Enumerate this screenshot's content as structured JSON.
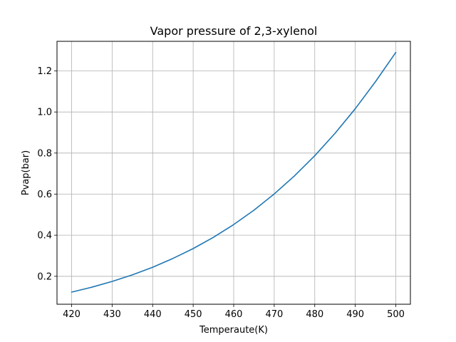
{
  "chart_data": {
    "type": "line",
    "title": "Vapor pressure of 2,3-xylenol",
    "xlabel": "Temperaute(K)",
    "ylabel": "Pvap(bar)",
    "xlim": [
      416.4,
      503.6
    ],
    "ylim": [
      0.064,
      1.344
    ],
    "xticks": [
      420,
      430,
      440,
      450,
      460,
      470,
      480,
      490,
      500
    ],
    "yticks": [
      0.2,
      0.4,
      0.6,
      0.8,
      1.0,
      1.2
    ],
    "ytick_labels": [
      "0.2",
      "0.4",
      "0.6",
      "0.8",
      "1.0",
      "1.2"
    ],
    "grid": true,
    "series": [
      {
        "color": "#1f77b4",
        "x": [
          420,
          425,
          430,
          435,
          440,
          445,
          450,
          455,
          460,
          465,
          470,
          475,
          480,
          485,
          490,
          495,
          500
        ],
        "y": [
          0.123,
          0.147,
          0.175,
          0.207,
          0.244,
          0.287,
          0.335,
          0.39,
          0.452,
          0.522,
          0.601,
          0.689,
          0.787,
          0.896,
          1.016,
          1.148,
          1.29
        ]
      }
    ]
  }
}
